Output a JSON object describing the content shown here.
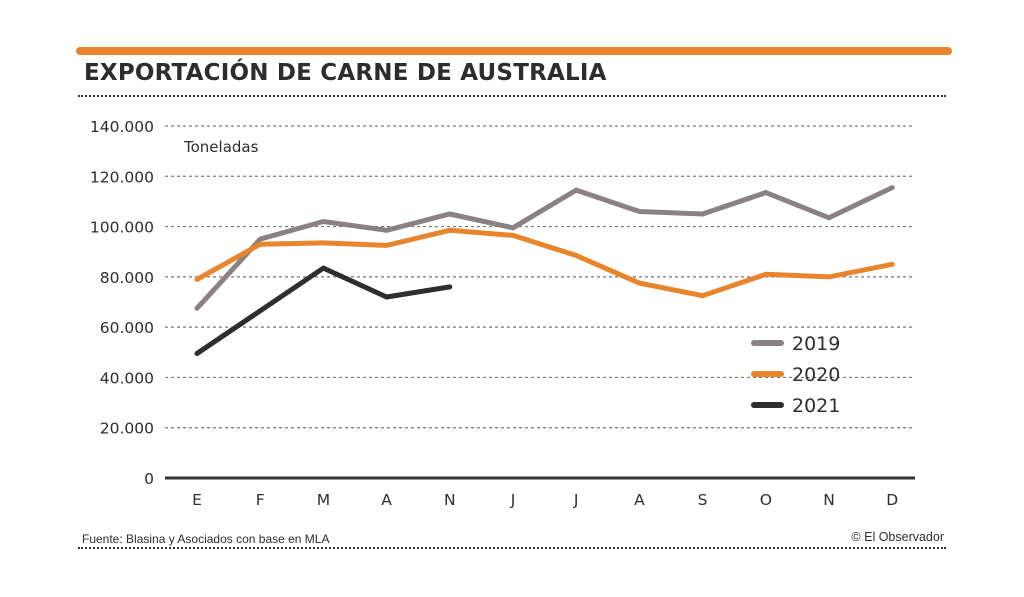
{
  "header": {
    "title": "EXPORTACIÓN DE CARNE DE AUSTRALIA",
    "accent_color": "#e8842b"
  },
  "footer": {
    "source": "Fuente: Blasina y Asociados con base en MLA",
    "credit": "© El Observador"
  },
  "chart_data": {
    "type": "line",
    "title": "EXPORTACIÓN DE CARNE DE AUSTRALIA",
    "xlabel": "",
    "ylabel": "Toneladas",
    "categories": [
      "E",
      "F",
      "M",
      "A",
      "N",
      "J",
      "J",
      "A",
      "S",
      "O",
      "N",
      "D"
    ],
    "ylim": [
      0,
      140000
    ],
    "yticks": [
      0,
      20000,
      40000,
      60000,
      80000,
      100000,
      120000,
      140000
    ],
    "ytick_labels": [
      "0",
      "20.000",
      "40.000",
      "60.000",
      "80.000",
      "100.000",
      "120.000",
      "140.000"
    ],
    "grid": true,
    "legend_position": "right-middle",
    "series": [
      {
        "name": "2019",
        "color": "#8a8282",
        "values": [
          67500,
          95000,
          102000,
          98500,
          105000,
          99500,
          114500,
          106000,
          105000,
          113500,
          103500,
          115500
        ]
      },
      {
        "name": "2020",
        "color": "#e8842b",
        "values": [
          79000,
          93000,
          93500,
          92500,
          98500,
          96500,
          88500,
          77500,
          72500,
          81000,
          80000,
          85000
        ]
      },
      {
        "name": "2021",
        "color": "#2e2e2e",
        "values": [
          49500,
          66500,
          83500,
          72000,
          76000,
          null,
          null,
          null,
          null,
          null,
          null,
          null
        ]
      }
    ]
  }
}
